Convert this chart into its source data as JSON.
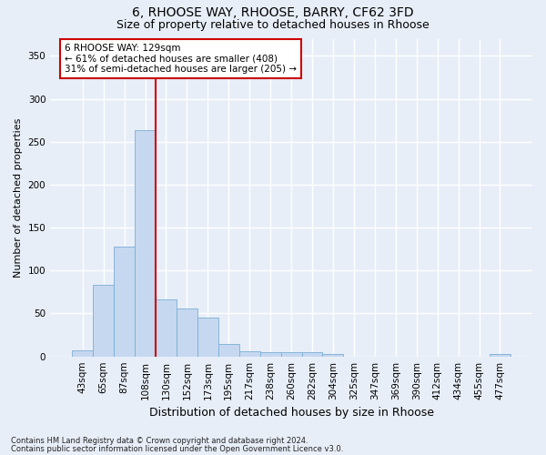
{
  "title1": "6, RHOOSE WAY, RHOOSE, BARRY, CF62 3FD",
  "title2": "Size of property relative to detached houses in Rhoose",
  "xlabel": "Distribution of detached houses by size in Rhoose",
  "ylabel": "Number of detached properties",
  "categories": [
    "43sqm",
    "65sqm",
    "87sqm",
    "108sqm",
    "130sqm",
    "152sqm",
    "173sqm",
    "195sqm",
    "217sqm",
    "238sqm",
    "260sqm",
    "282sqm",
    "304sqm",
    "325sqm",
    "347sqm",
    "369sqm",
    "390sqm",
    "412sqm",
    "434sqm",
    "455sqm",
    "477sqm"
  ],
  "values": [
    7,
    83,
    128,
    263,
    66,
    56,
    45,
    14,
    6,
    5,
    5,
    5,
    3,
    0,
    0,
    0,
    0,
    0,
    0,
    0,
    3
  ],
  "bar_color": "#c5d8f0",
  "bar_edgecolor": "#7aaed6",
  "annotation_text": "6 RHOOSE WAY: 129sqm\n← 61% of detached houses are smaller (408)\n31% of semi-detached houses are larger (205) →",
  "vline_color": "#cc0000",
  "vline_x": 3.5,
  "annotation_box_color": "#ffffff",
  "annotation_box_edgecolor": "#cc0000",
  "footer1": "Contains HM Land Registry data © Crown copyright and database right 2024.",
  "footer2": "Contains public sector information licensed under the Open Government Licence v3.0.",
  "ylim": [
    0,
    370
  ],
  "yticks": [
    0,
    50,
    100,
    150,
    200,
    250,
    300,
    350
  ],
  "bg_color": "#e8eef8",
  "grid_color": "#ffffff",
  "title1_fontsize": 10,
  "title2_fontsize": 9,
  "ylabel_fontsize": 8,
  "xlabel_fontsize": 9,
  "tick_fontsize": 7.5,
  "annotation_fontsize": 7.5,
  "footer_fontsize": 6
}
